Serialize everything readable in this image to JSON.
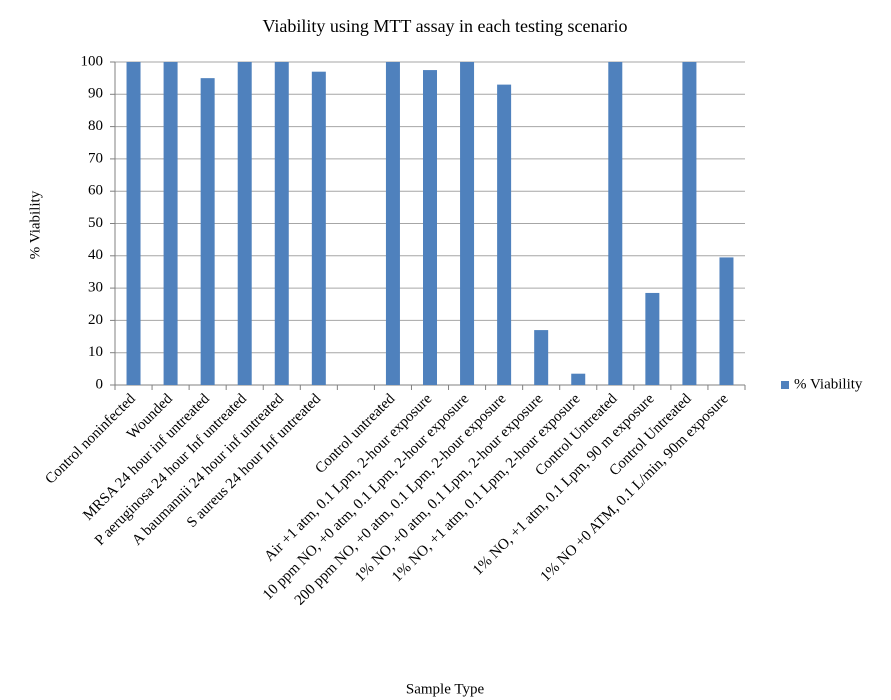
{
  "chart_data": {
    "type": "bar",
    "title": "Viability  using  MTT assay in each testing  scenario",
    "x_label": "Sample Type",
    "y_label": "% Viability",
    "categories": [
      "Control noninfected",
      "Wounded",
      "MRSA 24 hour inf untreated",
      "P aeruginosa 24 hour Inf untreated",
      "A baumannii 24 hour inf untreated",
      "S aureus 24 hour Inf untreated",
      null,
      "Control untreated",
      "Air +1 atm, 0.1 Lpm, 2-hour exposure",
      "10 ppm NO, +0 atm, 0.1 Lpm, 2-hour exposure",
      "200 ppm NO, +0 atm, 0.1 Lpm, 2-hour exposure",
      "1% NO, +0 atm, 0.1 Lpm, 2-hour exposure",
      "1% NO, +1 atm, 0.1 Lpm, 2-hour exposure",
      "Control Untreated",
      "1% NO, +1 atm, 0.1 Lpm, 90 m exposure",
      "Control Untreated",
      "1% NO +0 ATM, 0.1 L/min, 90m exposure"
    ],
    "series": [
      {
        "name": "% Viability",
        "color": "#4f81bd",
        "values": [
          100,
          100,
          95,
          100,
          100,
          97,
          null,
          100,
          97.5,
          100,
          93,
          17,
          3.5,
          100,
          28.5,
          100,
          39.5
        ]
      }
    ],
    "ylim": [
      0,
      100
    ],
    "yticks": [
      0,
      10,
      20,
      30,
      40,
      50,
      60,
      70,
      80,
      90,
      100
    ],
    "grid": true,
    "legend": "right"
  }
}
